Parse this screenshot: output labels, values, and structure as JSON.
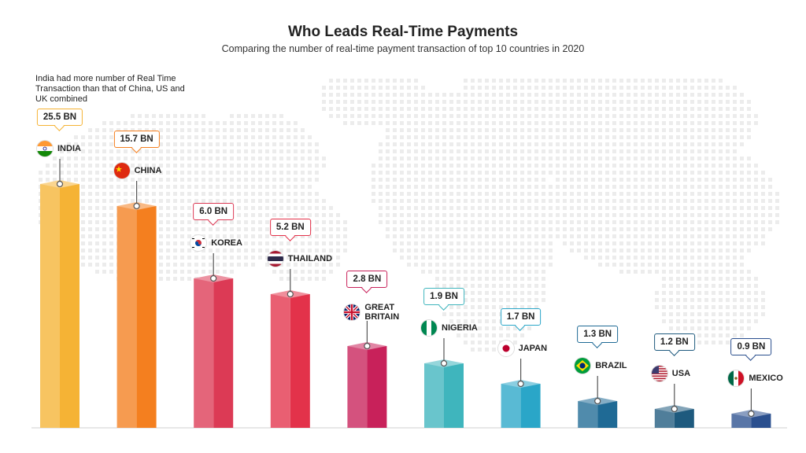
{
  "header": {
    "title": "Who Leads Real-Time Payments",
    "subtitle": "Comparing the number of real-time payment transaction of top 10 countries in 2020"
  },
  "annotation": "India had more number of Real Time Transaction than that of China, US and UK combined",
  "chart_data": {
    "type": "bar",
    "title": "Who Leads Real-Time Payments",
    "subtitle": "Comparing the number of real-time payment transaction of top 10 countries in 2020",
    "unit": "BN",
    "categories": [
      "INDIA",
      "CHINA",
      "KOREA",
      "THAILAND",
      "GREAT BRITAIN",
      "NIGERIA",
      "JAPAN",
      "BRAZIL",
      "USA",
      "MEXICO"
    ],
    "values": [
      25.5,
      15.7,
      6.0,
      5.2,
      2.8,
      1.9,
      1.7,
      1.3,
      1.2,
      0.9
    ],
    "labels": [
      "25.5 BN",
      "15.7 BN",
      "6.0 BN",
      "5.2 BN",
      "2.8 BN",
      "1.9 BN",
      "1.7 BN",
      "1.3 BN",
      "1.2 BN",
      "0.9 BN"
    ],
    "colors": [
      "#f5b335",
      "#f47f1f",
      "#dc3a55",
      "#e3324a",
      "#c8215a",
      "#3fb5bd",
      "#2aa6c8",
      "#1f6a95",
      "#1e5a7e",
      "#2a4f8e"
    ],
    "flags": [
      "india-flag",
      "china-flag",
      "korea-flag",
      "thailand-flag",
      "uk-flag",
      "nigeria-flag",
      "japan-flag",
      "brazil-flag",
      "usa-flag",
      "mexico-flag"
    ],
    "background": "dotted-world-map",
    "grid": false,
    "legend": "none"
  }
}
